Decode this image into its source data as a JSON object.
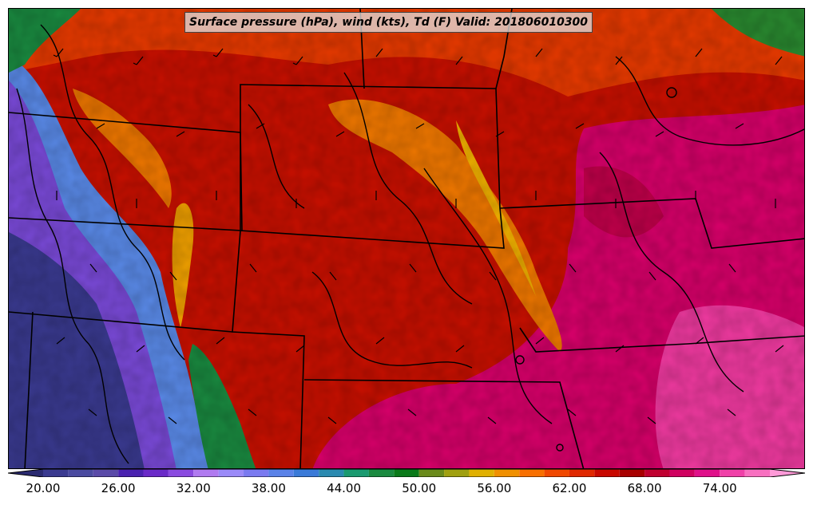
{
  "title": "Surface pressure (hPa), wind (kts), Td (F) Valid: 201806010300",
  "colorbar": {
    "tick_labels": [
      "20.00",
      "26.00",
      "32.00",
      "38.00",
      "44.00",
      "50.00",
      "56.00",
      "62.00",
      "68.00",
      "74.00"
    ],
    "min": 20,
    "max": 76,
    "step": 2,
    "colors": [
      "#2a2a70",
      "#3a3a90",
      "#4a4aa0",
      "#5a4aa8",
      "#4a22b0",
      "#6a2ac8",
      "#8a4ae0",
      "#b07af0",
      "#9a8af8",
      "#7a7af0",
      "#5a82e8",
      "#3a7ad8",
      "#2a8ab0",
      "#1a9a70",
      "#1a8a40",
      "#0a7a1a",
      "#6a8a1a",
      "#a0a010",
      "#e0b000",
      "#f09000",
      "#f87000",
      "#f04800",
      "#e02800",
      "#c80800",
      "#a80000",
      "#c00030",
      "#d00060",
      "#e0108a",
      "#f040a8",
      "#f870c0",
      "#ff9ad8"
    ]
  },
  "colors": {
    "title_bg": "#e1e1e1",
    "border": "#000000"
  }
}
